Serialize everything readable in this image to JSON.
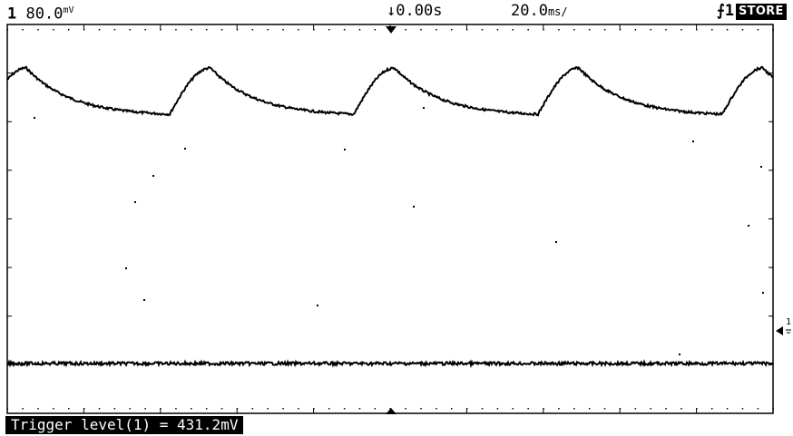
{
  "header": {
    "channel_number": "1",
    "channel_scale": "80.0",
    "channel_scale_unit": "mV",
    "time_reference": "0.00s",
    "time_scale": "20.0",
    "time_scale_unit": "ms/",
    "trigger_channel": "1",
    "mode_badge": "STORE"
  },
  "status": {
    "message": "Trigger level(1) = 431.2mV"
  },
  "ground_marker_label": "1",
  "colors": {
    "trace": "#000000",
    "background": "#ffffff"
  }
}
